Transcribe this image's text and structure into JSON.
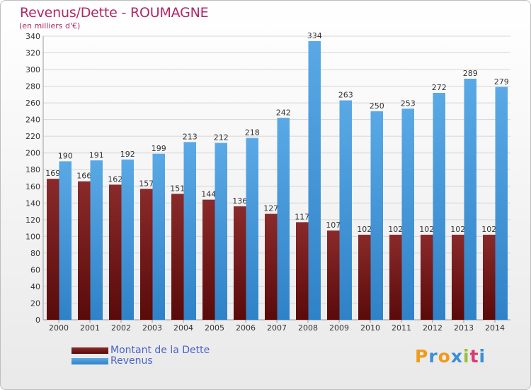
{
  "header": {
    "title": "Revenus/Dette - ROUMAGNE",
    "subtitle": "(en milliers d'€)"
  },
  "legend": {
    "debt": "Montant de la Dette",
    "revenue": "Revenus"
  },
  "logo": {
    "letters": [
      "P",
      "r",
      "o",
      "x",
      "i",
      "t",
      "i"
    ],
    "colors": [
      "#f29a1c",
      "#3a8fd6",
      "#f29a1c",
      "#3a8fd6",
      "#9bc03b",
      "#d93b74",
      "#3a8fd6"
    ]
  },
  "colors": {
    "debt_top": "#8a2a2a",
    "debt_bottom": "#5a0a0a",
    "revenue_top": "#5aa9e6",
    "revenue_bottom": "#2f82c7",
    "title": "#b02766",
    "legend_text": "#4a63c8"
  },
  "chart_data": {
    "type": "bar",
    "categories": [
      "2000",
      "2001",
      "2002",
      "2003",
      "2004",
      "2005",
      "2006",
      "2007",
      "2008",
      "2009",
      "2010",
      "2011",
      "2012",
      "2013",
      "2014"
    ],
    "series": [
      {
        "name": "Montant de la Dette",
        "values": [
          169,
          166,
          162,
          157,
          151,
          144,
          136,
          127,
          117,
          107,
          102,
          102,
          102,
          102,
          102
        ]
      },
      {
        "name": "Revenus",
        "values": [
          190,
          191,
          192,
          199,
          213,
          212,
          218,
          242,
          334,
          263,
          250,
          253,
          272,
          289,
          279
        ]
      }
    ],
    "ylim": [
      0,
      340
    ],
    "ytick_step": 20,
    "grid": true,
    "legend_position": "bottom-left"
  }
}
